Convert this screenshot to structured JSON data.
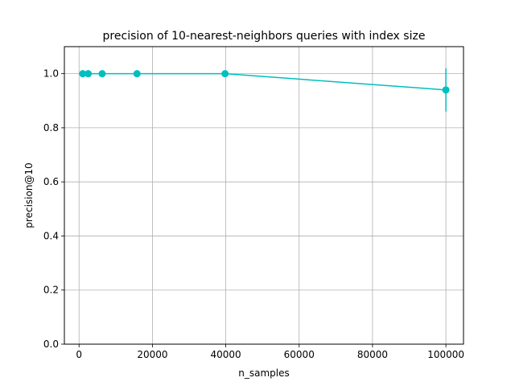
{
  "chart_data": {
    "type": "line",
    "title": "precision of 10-nearest-neighbors queries with index size",
    "xlabel": "n_samples",
    "ylabel": "precision@10",
    "xlim": [
      -4000,
      104800
    ],
    "ylim": [
      0.0,
      1.1
    ],
    "xticks": [
      0,
      20000,
      40000,
      60000,
      80000,
      100000
    ],
    "yticks": [
      0.0,
      0.2,
      0.4,
      0.6,
      0.8,
      1.0
    ],
    "xtick_labels": [
      "0",
      "20000",
      "40000",
      "60000",
      "80000",
      "100000"
    ],
    "ytick_labels": [
      "0.0",
      "0.2",
      "0.4",
      "0.6",
      "0.8",
      "1.0"
    ],
    "grid": true,
    "series": [
      {
        "color": "#00bfbf",
        "marker": "circle",
        "x": [
          1000,
          2500,
          6300,
          15800,
          39800,
          100000
        ],
        "y": [
          1.0,
          1.0,
          1.0,
          1.0,
          1.0,
          0.94
        ],
        "yerr": [
          0,
          0,
          0,
          0,
          0,
          0.08
        ]
      }
    ]
  }
}
